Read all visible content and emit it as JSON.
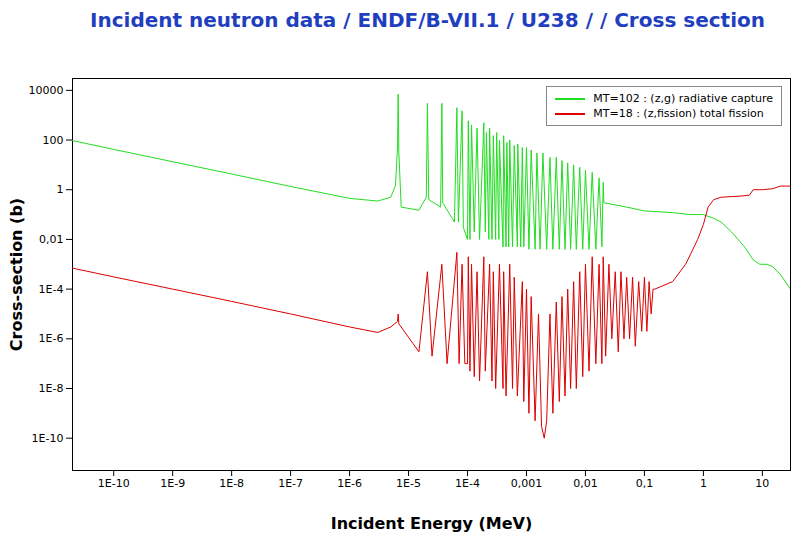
{
  "chart_data": {
    "type": "line",
    "title": "Incident neutron data / ENDF/B-VII.1 / U238 / / Cross section",
    "x_label": "Incident Energy (MeV)",
    "y_label": "Cross-section (b)",
    "log": true,
    "grid": false,
    "legend": "top-right",
    "xlim": [
      2e-11,
      30
    ],
    "ylim": [
      5e-12,
      30000
    ],
    "xticks": [
      {
        "value": 1e-10,
        "label": "1E-10"
      },
      {
        "value": 1e-09,
        "label": "1E-9"
      },
      {
        "value": 1e-08,
        "label": "1E-8"
      },
      {
        "value": 1e-07,
        "label": "1E-7"
      },
      {
        "value": 1e-06,
        "label": "1E-6"
      },
      {
        "value": 1e-05,
        "label": "1E-5"
      },
      {
        "value": 0.0001,
        "label": "1E-4"
      },
      {
        "value": 0.001,
        "label": "0,001"
      },
      {
        "value": 0.01,
        "label": "0,01"
      },
      {
        "value": 0.1,
        "label": "0,1"
      },
      1,
      10
    ],
    "yticks": [
      {
        "value": 1e-10,
        "label": "1E-10"
      },
      {
        "value": 1e-08,
        "label": "1E-8"
      },
      {
        "value": 1e-06,
        "label": "1E-6"
      },
      {
        "value": 0.0001,
        "label": "1E-4"
      },
      {
        "value": 0.01,
        "label": "0,01"
      },
      1,
      100,
      10000
    ],
    "series": [
      {
        "name": "MT=102 : (z,g) radiative capture",
        "color": "#22dd22",
        "x": [
          2e-11,
          1e-10,
          1e-09,
          1e-08,
          1e-07,
          1e-06,
          3e-06,
          5e-06,
          6e-06,
          6.5e-06,
          6.67e-06,
          6.85e-06,
          7.5e-06,
          1.5e-05,
          2e-05,
          2.09e-05,
          2.2e-05,
          3.5e-05,
          3.67e-05,
          3.8e-05,
          6e-05,
          6.6e-05,
          7e-05,
          8.08e-05,
          8.5e-05,
          0.0001,
          0.000103,
          0.00011,
          0.000117,
          0.00013,
          0.000145,
          0.00016,
          0.000189,
          0.0002,
          0.000209,
          0.00023,
          0.000237,
          0.00026,
          0.000274,
          0.0003,
          0.000312,
          0.00034,
          0.000348,
          0.0004,
          0.00041,
          0.00045,
          0.000464,
          0.0005,
          0.00052,
          0.00058,
          0.00062,
          0.0007,
          0.00071,
          0.0008,
          0.00085,
          0.0009,
          0.001,
          0.0011,
          0.0012,
          0.0014,
          0.0015,
          0.0017,
          0.0019,
          0.0022,
          0.0025,
          0.0028,
          0.0032,
          0.0036,
          0.004,
          0.0045,
          0.005,
          0.0056,
          0.0063,
          0.007,
          0.008,
          0.009,
          0.01,
          0.0115,
          0.013,
          0.015,
          0.017,
          0.019,
          0.02,
          0.0205,
          0.05,
          0.1,
          0.3,
          0.6,
          1,
          1.5,
          2,
          3,
          5,
          7,
          9,
          12,
          15,
          20,
          30
        ],
        "values": [
          95,
          42,
          13.4,
          4.3,
          1.35,
          0.45,
          0.35,
          0.5,
          1.5,
          50,
          7000,
          30,
          0.2,
          0.15,
          0.5,
          3000,
          0.4,
          0.2,
          3000,
          0.3,
          0.05,
          2000,
          0.05,
          1500,
          0.03,
          0.01,
          600,
          0.01,
          400,
          0.02,
          300,
          0.01,
          500,
          0.02,
          200,
          0.01,
          300,
          0.01,
          150,
          0.01,
          200,
          0.01,
          100,
          0.005,
          150,
          0.005,
          80,
          0.005,
          100,
          0.005,
          60,
          0.005,
          70,
          0.005,
          50,
          0.005,
          50,
          0.004,
          40,
          0.004,
          30,
          0.004,
          30,
          0.004,
          20,
          0.004,
          20,
          0.004,
          15,
          0.004,
          12,
          0.004,
          10,
          0.004,
          8,
          0.004,
          6,
          0.004,
          5,
          0.004,
          3,
          0.005,
          2,
          0.3,
          0.2,
          0.14,
          0.12,
          0.1,
          0.1,
          0.07,
          0.05,
          0.02,
          0.005,
          0.0015,
          0.001,
          0.001,
          0.0008,
          0.0004,
          0.0001
        ]
      },
      {
        "name": "MT=18 : (z,fission) total fission",
        "color": "#dd0000",
        "x": [
          2e-11,
          1e-10,
          1e-09,
          1e-08,
          1e-07,
          1e-06,
          3e-06,
          5e-06,
          6.5e-06,
          6.67e-06,
          6.85e-06,
          1.5e-05,
          2.09e-05,
          2.5e-05,
          3.67e-05,
          4.5e-05,
          6.6e-05,
          7.2e-05,
          8.08e-05,
          9e-05,
          0.0001,
          0.000103,
          0.00011,
          0.000117,
          0.00013,
          0.000145,
          0.00016,
          0.000189,
          0.0002,
          0.000237,
          0.00026,
          0.000274,
          0.0003,
          0.000348,
          0.0004,
          0.00041,
          0.00045,
          0.00052,
          0.00058,
          0.00062,
          0.0007,
          0.00085,
          0.0009,
          0.001,
          0.0011,
          0.0012,
          0.0014,
          0.0016,
          0.0018,
          0.002,
          0.0022,
          0.0025,
          0.0028,
          0.0032,
          0.0036,
          0.004,
          0.0045,
          0.005,
          0.0056,
          0.0063,
          0.007,
          0.008,
          0.009,
          0.01,
          0.0115,
          0.013,
          0.015,
          0.017,
          0.019,
          0.02,
          0.022,
          0.025,
          0.028,
          0.032,
          0.036,
          0.04,
          0.045,
          0.05,
          0.056,
          0.063,
          0.07,
          0.08,
          0.09,
          0.1,
          0.11,
          0.12,
          0.13,
          0.14,
          0.15,
          0.3,
          0.5,
          0.8,
          1.0,
          1.2,
          1.5,
          2,
          4,
          6,
          7,
          10,
          15,
          20,
          30
        ],
        "values": [
          0.0007,
          0.00031,
          0.0001,
          3.2e-05,
          1e-05,
          3e-06,
          1.8e-06,
          3e-06,
          5e-06,
          1e-05,
          4e-06,
          3e-07,
          0.0005,
          2e-07,
          0.001,
          1e-07,
          0.003,
          1e-07,
          0.001,
          1e-07,
          1e-07,
          0.002,
          5e-08,
          0.001,
          3e-08,
          0.0005,
          2e-08,
          0.002,
          5e-08,
          0.001,
          2e-08,
          0.0005,
          1e-08,
          0.001,
          1e-08,
          0.0005,
          5e-09,
          0.001,
          1e-08,
          0.0003,
          5e-09,
          0.0002,
          3e-09,
          0.0001,
          1e-09,
          5e-05,
          5e-10,
          1e-05,
          3e-10,
          1e-10,
          5e-10,
          1e-05,
          1e-09,
          3e-05,
          3e-09,
          5e-05,
          5e-09,
          0.0001,
          1e-08,
          0.0002,
          1e-08,
          0.0005,
          3e-08,
          0.001,
          5e-08,
          0.002,
          1e-07,
          0.001,
          1e-07,
          0.002,
          2e-07,
          0.001,
          1e-06,
          0.0005,
          3e-07,
          0.0005,
          1e-06,
          0.0003,
          1e-06,
          0.0003,
          5e-07,
          0.0002,
          2e-06,
          0.0003,
          2e-06,
          0.0002,
          1e-05,
          0.0001,
          0.0001,
          0.0002,
          0.001,
          0.01,
          0.04,
          0.2,
          0.4,
          0.5,
          0.55,
          0.6,
          1.0,
          1.0,
          1.1,
          1.4,
          1.4
        ]
      }
    ]
  }
}
